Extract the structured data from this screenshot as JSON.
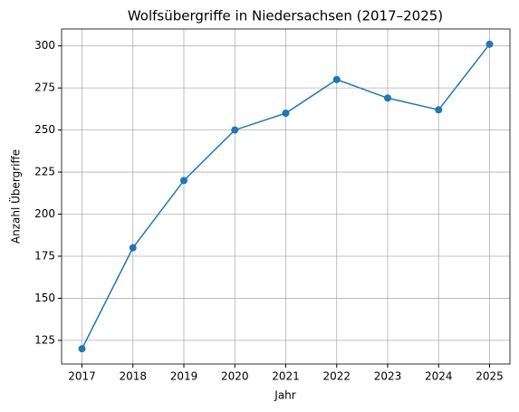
{
  "chart_data": {
    "type": "line",
    "title": "Wolfsübergriffe in Niedersachsen (2017–2025)",
    "xlabel": "Jahr",
    "ylabel": "Anzahl Übergriffe",
    "x": [
      2017,
      2018,
      2019,
      2020,
      2021,
      2022,
      2023,
      2024,
      2025
    ],
    "series": [
      {
        "name": "Übergriffe",
        "color": "#1f77b4",
        "values": [
          120,
          180,
          220,
          250,
          260,
          280,
          269,
          262,
          301
        ]
      }
    ],
    "xlim": [
      2016.6,
      2025.4
    ],
    "xticks": [
      2017,
      2018,
      2019,
      2020,
      2021,
      2022,
      2023,
      2024,
      2025
    ],
    "ylim": [
      110.95,
      310.05
    ],
    "yticks": [
      125,
      150,
      175,
      200,
      225,
      250,
      275,
      300
    ],
    "grid": true,
    "markers": true
  }
}
